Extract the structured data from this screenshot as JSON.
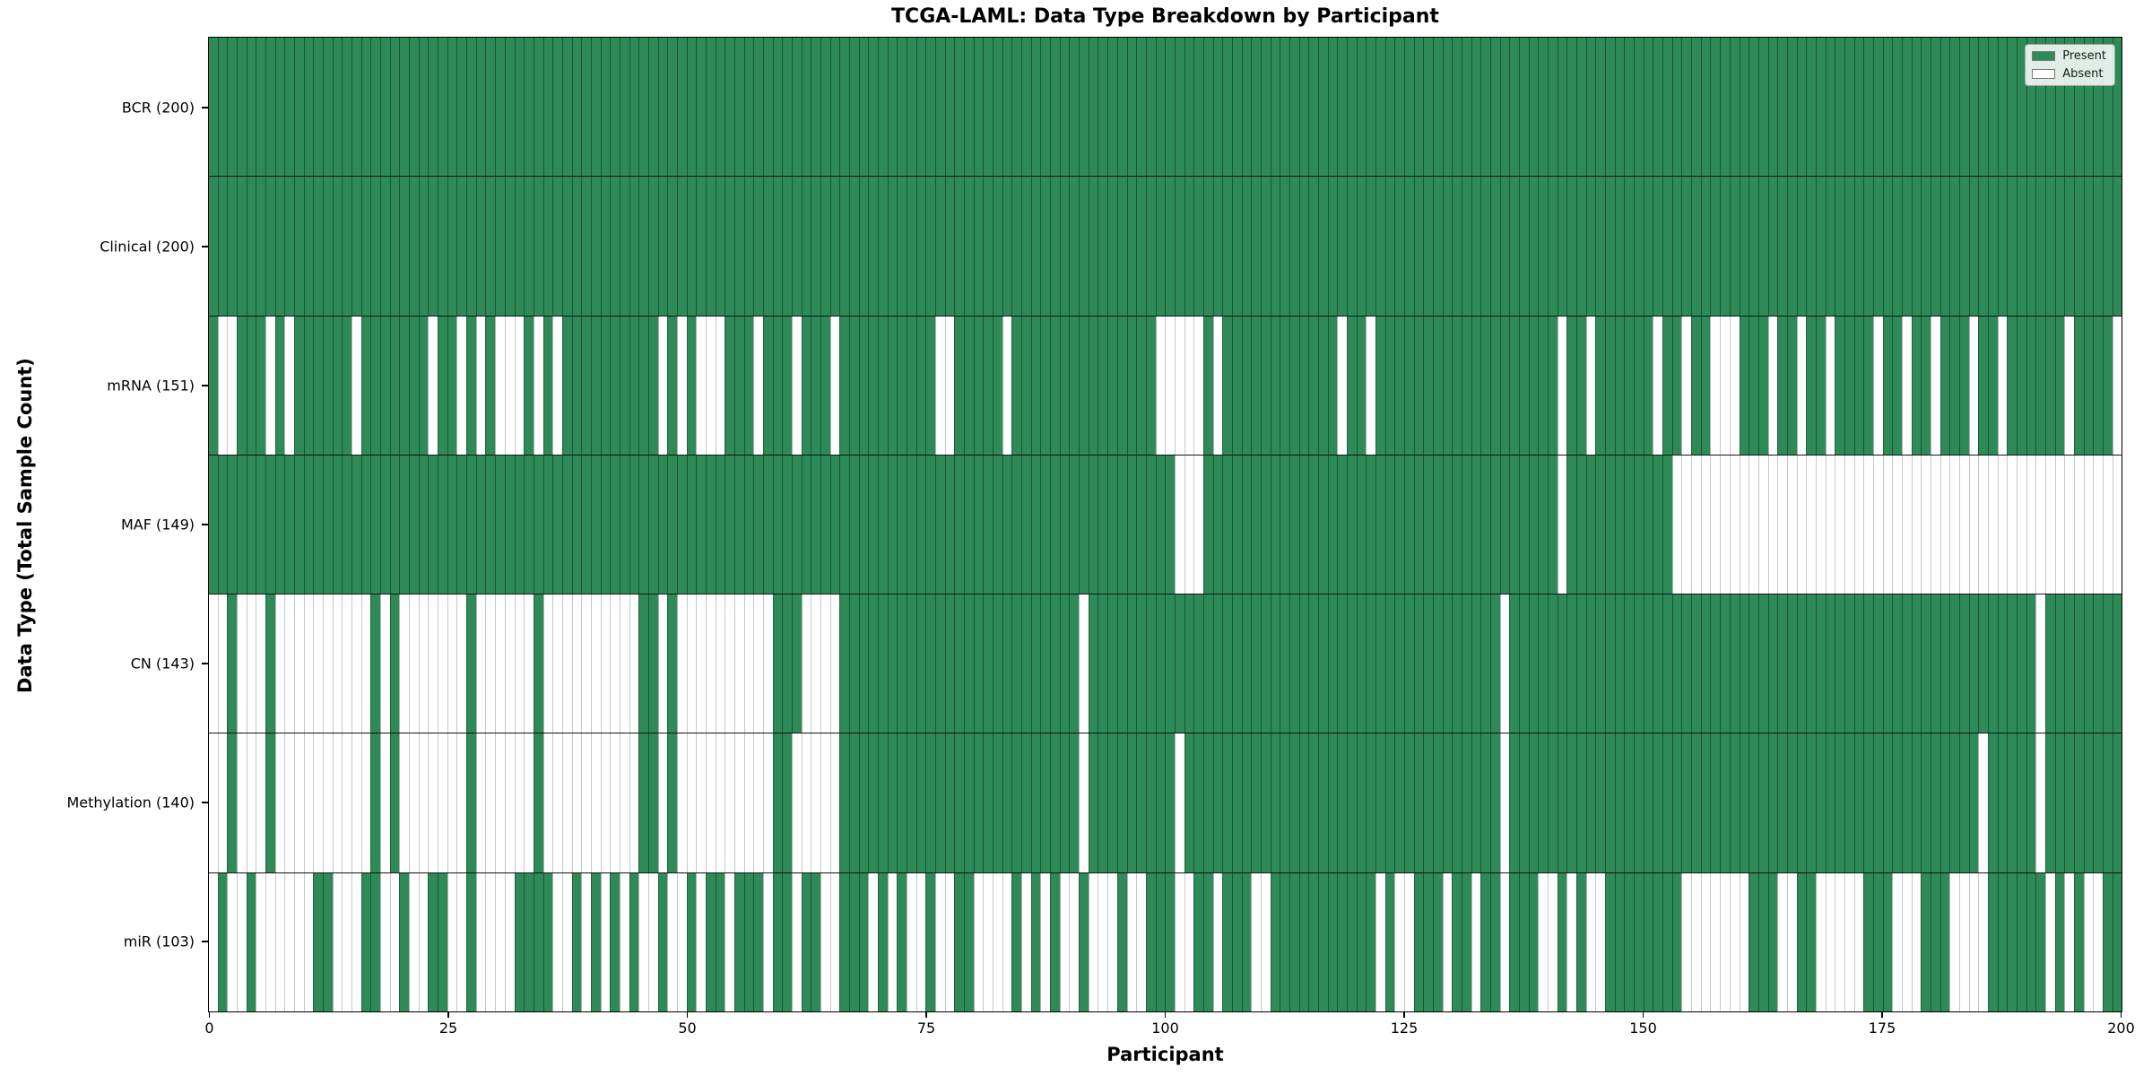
{
  "title": "TCGA-LAML: Data Type Breakdown by Participant",
  "xlabel": "Participant",
  "ylabel": "Data Type (Total Sample Count)",
  "legend": {
    "present_label": "Present",
    "absent_label": "Absent"
  },
  "colors": {
    "present": "#2E8B57",
    "absent": "#FFFFFF"
  },
  "x_ticks": [
    0,
    25,
    50,
    75,
    100,
    125,
    150,
    175,
    200
  ],
  "n_participants": 200,
  "chart_data": {
    "type": "heatmap",
    "x_range": [
      0,
      200
    ],
    "legend_position": "upper right",
    "rows": [
      {
        "label": "BCR (200)",
        "name": "BCR",
        "present_count": 200,
        "absent_cols": []
      },
      {
        "label": "Clinical (200)",
        "name": "Clinical",
        "present_count": 200,
        "absent_cols": []
      },
      {
        "label": "mRNA (151)",
        "name": "mRNA",
        "present_count": 151,
        "absent_cols": [
          1,
          2,
          6,
          8,
          15,
          23,
          26,
          28,
          30,
          31,
          32,
          34,
          36,
          47,
          49,
          51,
          52,
          53,
          57,
          61,
          65,
          76,
          77,
          83,
          99,
          100,
          101,
          102,
          103,
          105,
          118,
          121,
          141,
          144,
          151,
          154,
          157,
          158,
          159,
          163,
          166,
          169,
          174,
          177,
          180,
          184,
          187,
          194,
          199
        ]
      },
      {
        "label": "MAF (149)",
        "name": "MAF",
        "present_count": 149,
        "absent_cols": [
          101,
          102,
          103,
          141,
          153,
          154,
          155,
          156,
          157,
          158,
          159,
          160,
          161,
          162,
          163,
          164,
          165,
          166,
          167,
          168,
          169,
          170,
          171,
          172,
          173,
          174,
          175,
          176,
          177,
          178,
          179,
          180,
          181,
          182,
          183,
          184,
          185,
          186,
          187,
          188,
          189,
          190,
          191,
          192,
          193,
          194,
          195,
          196,
          197,
          198,
          199
        ]
      },
      {
        "label": "CN (143)",
        "name": "CN",
        "present_count": 143,
        "absent_cols": [
          0,
          1,
          3,
          4,
          5,
          7,
          8,
          9,
          10,
          11,
          12,
          13,
          14,
          15,
          16,
          18,
          20,
          21,
          22,
          23,
          24,
          25,
          26,
          28,
          29,
          30,
          31,
          32,
          33,
          35,
          36,
          37,
          38,
          39,
          40,
          41,
          42,
          43,
          44,
          47,
          49,
          50,
          51,
          52,
          53,
          54,
          55,
          56,
          57,
          58,
          62,
          63,
          64,
          65,
          91,
          135,
          191
        ]
      },
      {
        "label": "Methylation (140)",
        "name": "Methylation",
        "present_count": 140,
        "absent_cols": [
          0,
          1,
          3,
          4,
          5,
          7,
          8,
          9,
          10,
          11,
          12,
          13,
          14,
          15,
          16,
          18,
          20,
          21,
          22,
          23,
          24,
          25,
          26,
          28,
          29,
          30,
          31,
          32,
          33,
          35,
          36,
          37,
          38,
          39,
          40,
          41,
          42,
          43,
          44,
          47,
          49,
          50,
          51,
          52,
          53,
          54,
          55,
          56,
          57,
          58,
          61,
          62,
          63,
          64,
          65,
          91,
          101,
          135,
          185,
          191
        ]
      },
      {
        "label": "miR (103)",
        "name": "miR",
        "present_count": 103,
        "absent_cols": [
          0,
          2,
          3,
          5,
          6,
          7,
          8,
          9,
          10,
          13,
          14,
          15,
          18,
          19,
          21,
          22,
          25,
          26,
          28,
          29,
          30,
          31,
          36,
          37,
          39,
          41,
          43,
          45,
          46,
          48,
          49,
          51,
          54,
          58,
          61,
          64,
          65,
          69,
          71,
          73,
          74,
          76,
          77,
          80,
          81,
          82,
          83,
          85,
          87,
          89,
          90,
          92,
          93,
          94,
          96,
          97,
          101,
          102,
          105,
          109,
          110,
          122,
          124,
          125,
          129,
          132,
          135,
          139,
          140,
          142,
          144,
          145,
          154,
          155,
          156,
          157,
          158,
          159,
          160,
          164,
          165,
          168,
          169,
          170,
          171,
          172,
          176,
          177,
          178,
          182,
          183,
          184,
          185,
          192,
          194,
          196,
          197
        ]
      }
    ]
  }
}
